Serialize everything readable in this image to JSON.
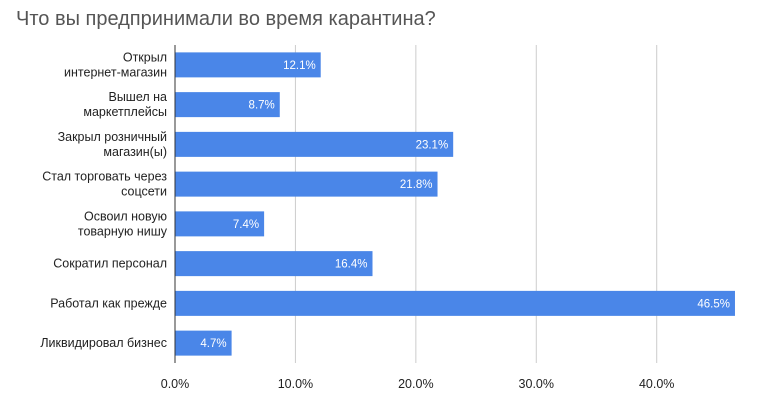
{
  "chart_data": {
    "type": "bar",
    "orientation": "horizontal",
    "title": "Что вы предпринимали во время карантина?",
    "categories": [
      [
        "Открыл",
        "интернет-магазин"
      ],
      [
        "Вышел на",
        "маркетплейсы"
      ],
      [
        "Закрыл розничный",
        "магазин(ы)"
      ],
      [
        "Стал торговать через",
        "соцсети"
      ],
      [
        "Освоил новую",
        "товарную нишу"
      ],
      [
        "Сократил персонал"
      ],
      [
        "Работал как прежде"
      ],
      [
        "Ликвидировал бизнес"
      ]
    ],
    "values": [
      12.1,
      8.7,
      23.1,
      21.8,
      7.4,
      16.4,
      46.5,
      4.7
    ],
    "data_labels": [
      "12.1%",
      "8.7%",
      "23.1%",
      "21.8%",
      "7.4%",
      "16.4%",
      "46.5%",
      "4.7%"
    ],
    "xlim": [
      0,
      47
    ],
    "x_ticks": [
      0,
      10,
      20,
      30,
      40
    ],
    "x_tick_labels": [
      "0.0%",
      "10.0%",
      "20.0%",
      "30.0%",
      "40.0%"
    ],
    "xlabel": "",
    "ylabel": "",
    "grid": true,
    "legend": "none",
    "bar_color": "#4A86E8",
    "grid_color": "#cccccc",
    "axis_color": "#333333"
  }
}
